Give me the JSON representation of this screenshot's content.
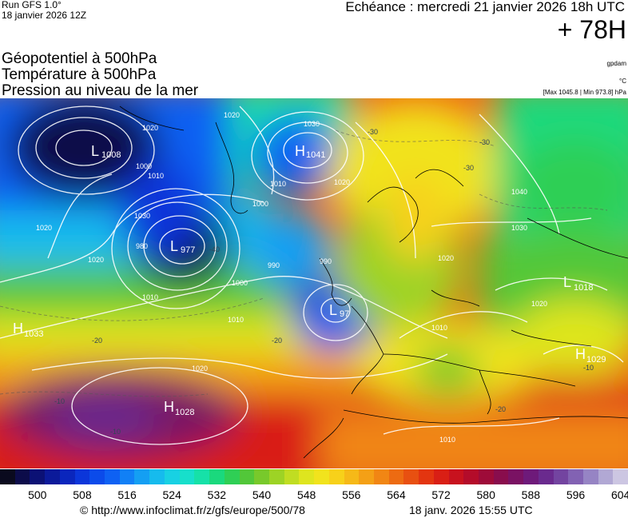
{
  "header": {
    "run": "Run GFS 1.0°",
    "run_date": "18 janvier 2026 12Z",
    "valid": "Echéance : mercredi 21 janvier 2026 18h UTC",
    "lead": "+ 78H"
  },
  "variables": {
    "geopotential": "Géopotentiel à 500hPa",
    "temperature": "Température à 500hPa",
    "pressure": "Pression au niveau de la mer"
  },
  "units": {
    "geopotential": "gpdam",
    "temperature": "°C",
    "pressure_range": "[Max 1045.8 | Min 973.8] hPa"
  },
  "pressure_centers": [
    {
      "type": "L",
      "value": "1008"
    },
    {
      "type": "H",
      "value": "1041"
    },
    {
      "type": "L",
      "value": "977"
    },
    {
      "type": "L",
      "value": "97"
    },
    {
      "type": "H",
      "value": "1033"
    },
    {
      "type": "H",
      "value": "1028"
    },
    {
      "type": "L",
      "value": "1018"
    },
    {
      "type": "H",
      "value": "1029"
    }
  ],
  "isobar_labels": [
    "1020",
    "1020",
    "1030",
    "1010",
    "1000",
    "990",
    "980",
    "990",
    "1000",
    "1010",
    "1020",
    "1010",
    "1020",
    "1030",
    "1020",
    "1040",
    "1030",
    "1020",
    "1010",
    "1020",
    "1010",
    "1010",
    "1000",
    "1020"
  ],
  "isotherm_labels": [
    "-30",
    "-30",
    "-40",
    "-20",
    "-20",
    "-10",
    "-10",
    "-20",
    "-30",
    "-10"
  ],
  "color_scale": {
    "colors": [
      "#0a0a1e",
      "#0c0c4a",
      "#0b1175",
      "#0b1a9a",
      "#0a26bd",
      "#0b36da",
      "#0b4bea",
      "#0e61f3",
      "#1180f6",
      "#149ff3",
      "#16bbed",
      "#18d1e3",
      "#17dfcb",
      "#16e1a8",
      "#1ad97d",
      "#2fcf55",
      "#52c739",
      "#78c92b",
      "#9dd325",
      "#c0dd22",
      "#dee51f",
      "#f1e31d",
      "#f7d11a",
      "#f6b918",
      "#f4a016",
      "#f18614",
      "#ed6b12",
      "#e85011",
      "#e33510",
      "#d91f15",
      "#c8121e",
      "#b40c2a",
      "#9e0b39",
      "#890d4d",
      "#7a1263",
      "#6e1a7a",
      "#6a2a8e",
      "#7344a0",
      "#8262b3",
      "#9684c4",
      "#b1a8d4",
      "#ccc6e2"
    ],
    "tick_labels": [
      "500",
      "508",
      "516",
      "524",
      "532",
      "540",
      "548",
      "556",
      "564",
      "572",
      "580",
      "588",
      "596",
      "604"
    ]
  },
  "footer": {
    "url": "© http://www.infoclimat.fr/z/gfs/europe/500/78",
    "timestamp": "18 janv. 2026 15:55 UTC"
  }
}
